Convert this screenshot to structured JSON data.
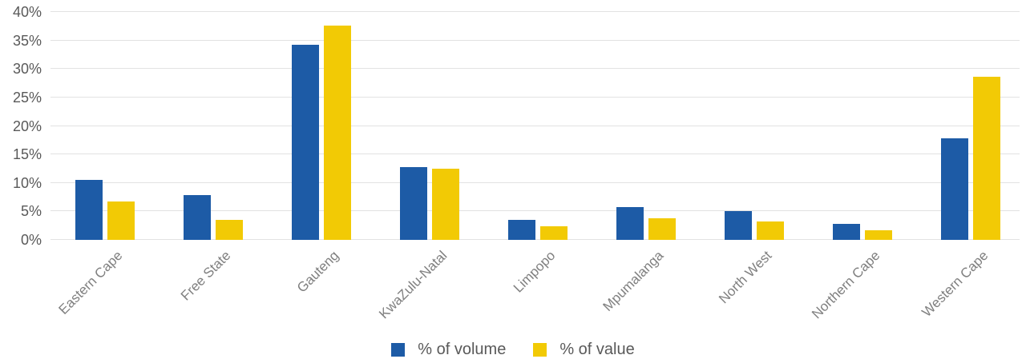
{
  "chart_data": {
    "type": "bar",
    "title": "",
    "xlabel": "",
    "ylabel": "",
    "categories": [
      "Eastern Cape",
      "Free State",
      "Gauteng",
      "KwaZulu-Natal",
      "Limpopo",
      "Mpumalanga",
      "North West",
      "Northern Cape",
      "Western Cape"
    ],
    "series": [
      {
        "name": "% of volume",
        "color": "#1d5ba6",
        "values": [
          10.5,
          7.8,
          34.2,
          12.8,
          3.5,
          5.8,
          5.1,
          2.8,
          17.8
        ]
      },
      {
        "name": "% of value",
        "color": "#f2ca05",
        "values": [
          6.8,
          3.5,
          37.6,
          12.5,
          2.4,
          3.8,
          3.2,
          1.7,
          28.7
        ]
      }
    ],
    "ylim": [
      0,
      40
    ],
    "ytick_step": 5,
    "ytick_labels": [
      "0%",
      "5%",
      "10%",
      "15%",
      "20%",
      "25%",
      "30%",
      "35%",
      "40%"
    ],
    "grid": true,
    "legend_position": "bottom"
  },
  "style": {
    "grid_color": "#e2e2e2",
    "ytick_color": "#595959",
    "xtick_color": "#7f7f7f",
    "legend_text_color": "#595959",
    "background": "#ffffff"
  }
}
